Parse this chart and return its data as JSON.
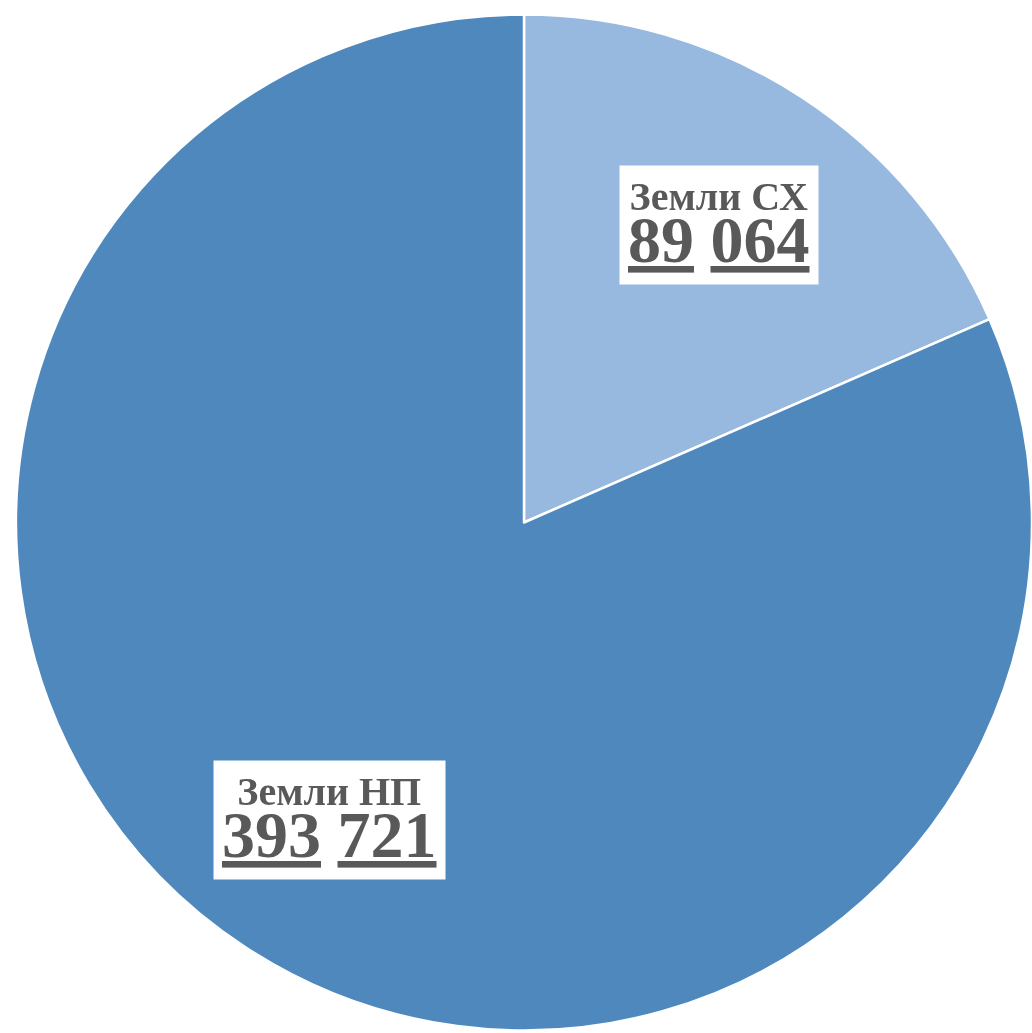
{
  "chart_data": {
    "type": "pie",
    "categories": [
      "Земли СХ",
      "Земли НП"
    ],
    "values": [
      89064,
      393721
    ],
    "value_labels": [
      "89 064",
      "393 721"
    ],
    "colors": [
      "#98b9df",
      "#4f88bd"
    ],
    "legend": false
  }
}
